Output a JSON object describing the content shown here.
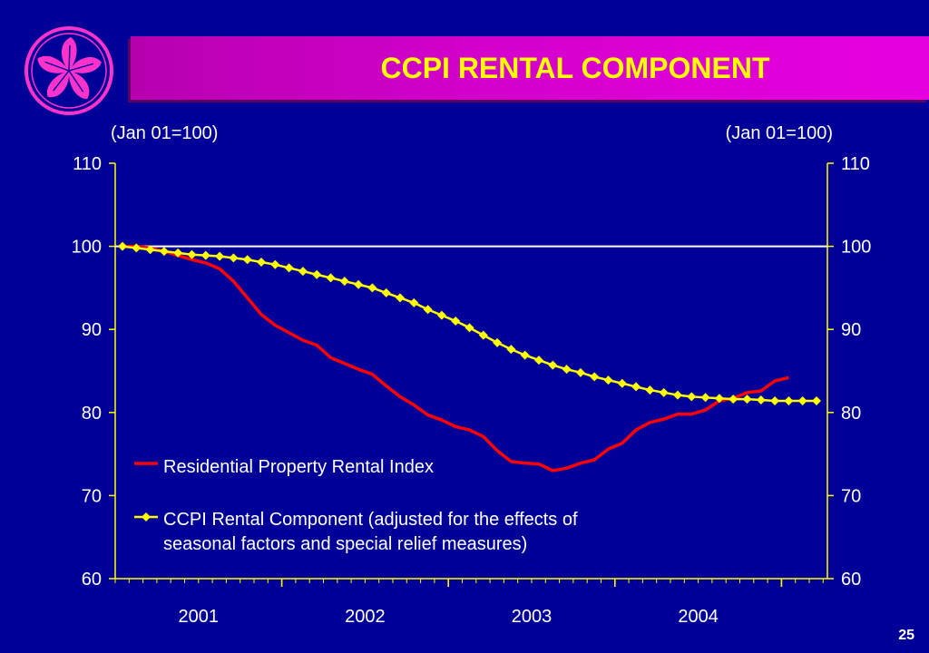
{
  "slide": {
    "title": "CCPI RENTAL COMPONENT",
    "page_number": "25"
  },
  "colors": {
    "background": "#000099",
    "axis": "#ffff00",
    "text": "#ffffff",
    "rental_index": "#ff0000",
    "ccpi": "#ffff00",
    "logo": "#ff33cc"
  },
  "icons": {
    "logo": "bauhinia-flower-icon"
  },
  "chart_data": {
    "type": "line",
    "title": "CCPI RENTAL COMPONENT",
    "y_left_label": "(Jan 01=100)",
    "y_right_label": "(Jan 01=100)",
    "ylim": [
      60,
      110
    ],
    "y_ticks": [
      60,
      70,
      80,
      90,
      100,
      110
    ],
    "x_ticks": [
      "2001",
      "2002",
      "2003",
      "2004"
    ],
    "reference_line": 100,
    "grid": false,
    "legend_position": "bottom-left",
    "series": [
      {
        "name": "Residential Property Rental Index",
        "color": "#ff0000",
        "marker": "none",
        "start": "2001-01",
        "values": [
          100,
          100,
          99.8,
          99.4,
          98.9,
          98.4,
          98,
          97.3,
          95.8,
          93.8,
          91.8,
          90.5,
          89.6,
          88.7,
          88.1,
          86.6,
          85.9,
          85.2,
          84.6,
          83.2,
          81.9,
          80.9,
          79.7,
          79.1,
          78.3,
          77.9,
          77.1,
          75.4,
          74.1,
          73.9,
          73.8,
          73,
          73.3,
          73.9,
          74.3,
          75.6,
          76.3,
          77.9,
          78.8,
          79.2,
          79.8,
          79.8,
          80.3,
          81.4,
          81.7,
          82.4,
          82.6,
          83.8,
          84.2
        ]
      },
      {
        "name": "CCPI Rental Component (adjusted for the effects of seasonal factors and special relief measures)",
        "color": "#ffff00",
        "marker": "diamond",
        "start": "2001-01",
        "values": [
          100,
          99.8,
          99.6,
          99.4,
          99.2,
          99,
          98.9,
          98.8,
          98.6,
          98.4,
          98.1,
          97.8,
          97.4,
          97,
          96.6,
          96.2,
          95.8,
          95.4,
          95,
          94.4,
          93.8,
          93.2,
          92.4,
          91.7,
          91,
          90.2,
          89.3,
          88.4,
          87.6,
          86.9,
          86.3,
          85.7,
          85.2,
          84.8,
          84.3,
          83.9,
          83.5,
          83.1,
          82.7,
          82.4,
          82.1,
          81.9,
          81.8,
          81.7,
          81.6,
          81.6,
          81.5,
          81.4,
          81.4,
          81.4,
          81.4
        ]
      }
    ]
  }
}
